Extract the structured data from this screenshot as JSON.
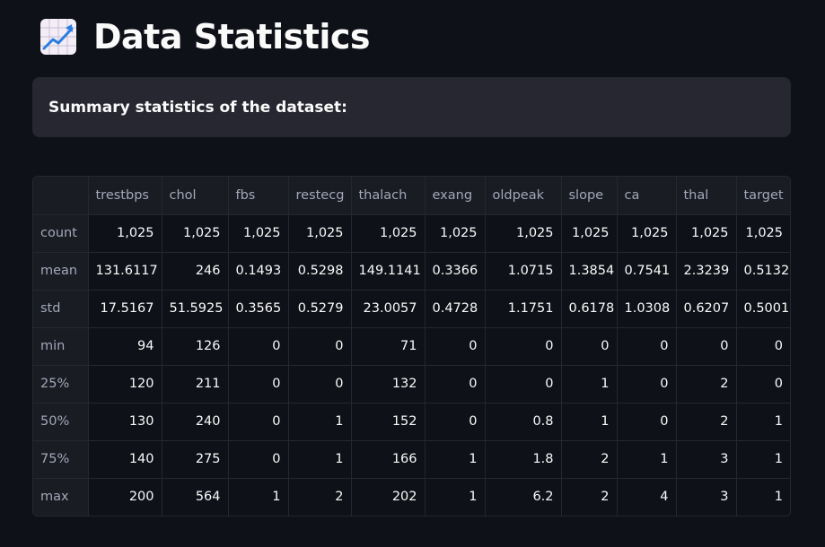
{
  "header": {
    "icon": "chart-increasing-icon",
    "title": "Data Statistics"
  },
  "info": {
    "text": "Summary statistics of the dataset:"
  },
  "table": {
    "columns": [
      "",
      "trestbps",
      "chol",
      "fbs",
      "restecg",
      "thalach",
      "exang",
      "oldpeak",
      "slope",
      "ca",
      "thal",
      "target"
    ],
    "rows": [
      [
        "count",
        "1,025",
        "1,025",
        "1,025",
        "1,025",
        "1,025",
        "1,025",
        "1,025",
        "1,025",
        "1,025",
        "1,025",
        "1,025"
      ],
      [
        "mean",
        "131.6117",
        "246",
        "0.1493",
        "0.5298",
        "149.1141",
        "0.3366",
        "1.0715",
        "1.3854",
        "0.7541",
        "2.3239",
        "0.5132"
      ],
      [
        "std",
        "17.5167",
        "51.5925",
        "0.3565",
        "0.5279",
        "23.0057",
        "0.4728",
        "1.1751",
        "0.6178",
        "1.0308",
        "0.6207",
        "0.5001"
      ],
      [
        "min",
        "94",
        "126",
        "0",
        "0",
        "71",
        "0",
        "0",
        "0",
        "0",
        "0",
        "0"
      ],
      [
        "25%",
        "120",
        "211",
        "0",
        "0",
        "132",
        "0",
        "0",
        "1",
        "0",
        "2",
        "0"
      ],
      [
        "50%",
        "130",
        "240",
        "0",
        "1",
        "152",
        "0",
        "0.8",
        "1",
        "0",
        "2",
        "1"
      ],
      [
        "75%",
        "140",
        "275",
        "0",
        "1",
        "166",
        "1",
        "1.8",
        "2",
        "1",
        "3",
        "1"
      ],
      [
        "max",
        "200",
        "564",
        "1",
        "2",
        "202",
        "1",
        "6.2",
        "2",
        "4",
        "3",
        "1"
      ]
    ]
  },
  "colors": {
    "background": "#0e1117",
    "info_box": "#262730",
    "text": "#fafafa",
    "muted": "#a3a8b8"
  }
}
